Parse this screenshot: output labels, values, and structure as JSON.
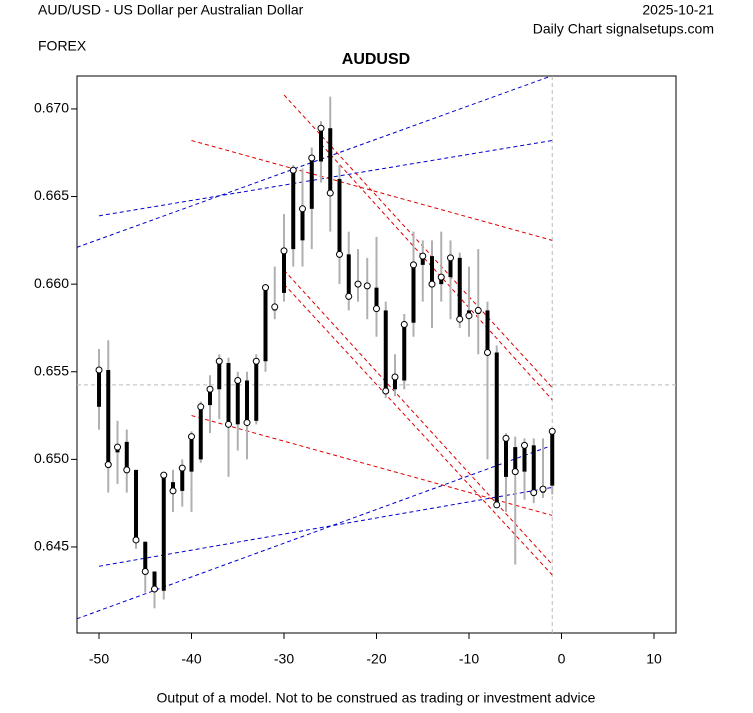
{
  "header": {
    "instrument": "AUD/USD - US Dollar per Australian Dollar",
    "market": "FOREX",
    "date": "2025-10-21",
    "source": "Daily Chart signalsetups.com"
  },
  "footer": "Output of a model. Not to be construed as trading or investment advice",
  "chart_data": {
    "type": "candlestick",
    "title": "AUDUSD",
    "x": [
      -50,
      -49,
      -48,
      -47,
      -46,
      -45,
      -44,
      -43,
      -42,
      -41,
      -40,
      -39,
      -38,
      -37,
      -36,
      -35,
      -34,
      -33,
      -32,
      -31,
      -30,
      -29,
      -28,
      -27,
      -26,
      -25,
      -24,
      -23,
      -22,
      -21,
      -20,
      -19,
      -18,
      -17,
      -16,
      -15,
      -14,
      -13,
      -12,
      -11,
      -10,
      -9,
      -8,
      -7,
      -6,
      -5,
      -4,
      -3,
      -2,
      -1
    ],
    "open": [
      0.653,
      0.6551,
      0.6504,
      0.651,
      0.6494,
      0.6453,
      0.6436,
      0.6425,
      0.6487,
      0.6482,
      0.6493,
      0.65,
      0.6531,
      0.654,
      0.6555,
      0.652,
      0.6545,
      0.6522,
      0.6556,
      0.6585,
      0.6595,
      0.662,
      0.6625,
      0.6643,
      0.667,
      0.6689,
      0.666,
      0.6617,
      0.66,
      0.66,
      0.6598,
      0.6585,
      0.654,
      0.6545,
      0.6578,
      0.6611,
      0.6616,
      0.66,
      0.6604,
      0.6615,
      0.6585,
      0.6583,
      0.6585,
      0.6561,
      0.649,
      0.6507,
      0.6493,
      0.6508,
      0.6481,
      0.6485
    ],
    "high": [
      0.6563,
      0.6568,
      0.6522,
      0.6517,
      0.6494,
      0.6453,
      0.6436,
      0.6492,
      0.6494,
      0.65,
      0.6516,
      0.6533,
      0.6548,
      0.656,
      0.6558,
      0.655,
      0.655,
      0.656,
      0.66,
      0.661,
      0.664,
      0.6668,
      0.6666,
      0.6678,
      0.6693,
      0.6707,
      0.6668,
      0.663,
      0.662,
      0.6615,
      0.6627,
      0.659,
      0.656,
      0.6583,
      0.663,
      0.6625,
      0.6625,
      0.663,
      0.6625,
      0.6618,
      0.661,
      0.662,
      0.659,
      0.6565,
      0.6515,
      0.6513,
      0.6512,
      0.6512,
      0.6512,
      0.6518
    ],
    "low": [
      0.6517,
      0.6481,
      0.6486,
      0.6481,
      0.6449,
      0.6424,
      0.6415,
      0.642,
      0.647,
      0.6473,
      0.647,
      0.6498,
      0.6515,
      0.6523,
      0.649,
      0.6505,
      0.65,
      0.652,
      0.655,
      0.658,
      0.659,
      0.661,
      0.661,
      0.662,
      0.6658,
      0.663,
      0.66,
      0.6585,
      0.659,
      0.658,
      0.657,
      0.6535,
      0.6536,
      0.654,
      0.657,
      0.659,
      0.6575,
      0.659,
      0.658,
      0.6575,
      0.657,
      0.656,
      0.65,
      0.6475,
      0.647,
      0.644,
      0.6477,
      0.6475,
      0.6478,
      0.648
    ],
    "close": [
      0.6551,
      0.6497,
      0.6507,
      0.6494,
      0.6454,
      0.6436,
      0.6426,
      0.6491,
      0.6482,
      0.6495,
      0.6513,
      0.653,
      0.654,
      0.6556,
      0.652,
      0.6545,
      0.6521,
      0.6556,
      0.6598,
      0.6587,
      0.6619,
      0.6665,
      0.6643,
      0.6672,
      0.6689,
      0.6652,
      0.6617,
      0.6593,
      0.66,
      0.6599,
      0.6586,
      0.6539,
      0.6547,
      0.6577,
      0.6611,
      0.6616,
      0.66,
      0.6604,
      0.6615,
      0.658,
      0.6582,
      0.6585,
      0.6561,
      0.6474,
      0.6512,
      0.6493,
      0.6508,
      0.6481,
      0.6483,
      0.6516
    ],
    "wick_color": "#b0b0b0",
    "body_color": "#000000",
    "lines": [
      {
        "color": "#0000cc",
        "x": [
          -52.4,
          -1
        ],
        "y": [
          0.6621,
          0.6719
        ]
      },
      {
        "color": "#0000cc",
        "x": [
          -50,
          -1
        ],
        "y": [
          0.6639,
          0.6682
        ]
      },
      {
        "color": "#0000cc",
        "x": [
          -52.4,
          -1
        ],
        "y": [
          0.6409,
          0.6508
        ]
      },
      {
        "color": "#0000cc",
        "x": [
          -50,
          -1
        ],
        "y": [
          0.6439,
          0.6484
        ]
      },
      {
        "color": "#dd0000",
        "x": [
          -40,
          -1
        ],
        "y": [
          0.6682,
          0.6625
        ]
      },
      {
        "color": "#dd0000",
        "x": [
          -30,
          -1
        ],
        "y": [
          0.6708,
          0.6541
        ]
      },
      {
        "color": "#dd0000",
        "x": [
          -26,
          -1
        ],
        "y": [
          0.668,
          0.6534
        ]
      },
      {
        "color": "#dd0000",
        "x": [
          -30,
          -1
        ],
        "y": [
          0.6608,
          0.644
        ]
      },
      {
        "color": "#dd0000",
        "x": [
          -30,
          -1
        ],
        "y": [
          0.66,
          0.6434
        ]
      },
      {
        "color": "#dd0000",
        "x": [
          -40,
          -1
        ],
        "y": [
          0.6525,
          0.6468
        ]
      }
    ],
    "hline": 0.65425,
    "vline": -1,
    "xlim": [
      -52.38,
      12.38
    ],
    "ylim": [
      0.64009,
      0.67188
    ],
    "xticks": [
      -50,
      -40,
      -30,
      -20,
      -10,
      0,
      10
    ],
    "yticks": [
      0.645,
      {
        "value": 0.65,
        "label": "0.650"
      },
      0.655,
      {
        "value": 0.66,
        "label": "0.660"
      },
      0.665,
      {
        "value": 0.67,
        "label": "0.670"
      }
    ]
  }
}
